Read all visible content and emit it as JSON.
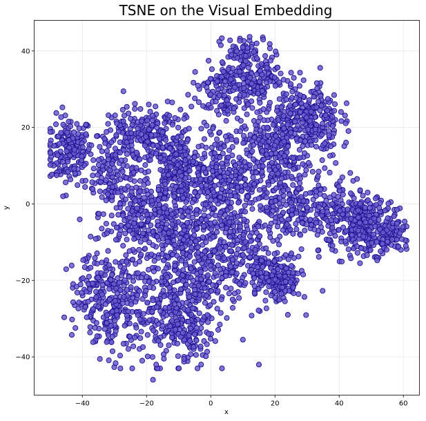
{
  "chart_data": {
    "type": "scatter",
    "title": "TSNE on the Visual Embedding",
    "xlabel": "x",
    "ylabel": "y",
    "xlim": [
      -55,
      65
    ],
    "ylim": [
      -50,
      48
    ],
    "xticks": [
      -40,
      -20,
      0,
      20,
      40,
      60
    ],
    "yticks": [
      -40,
      -20,
      0,
      20,
      40
    ],
    "grid": true,
    "marker_fill": "#6a5acd",
    "marker_edge": "#1a0f8f",
    "clusters": [
      {
        "center": [
          -44,
          14
        ],
        "spread": [
          3.5,
          4.5
        ],
        "n": 170
      },
      {
        "center": [
          -31,
          8
        ],
        "spread": [
          4,
          5
        ],
        "n": 130
      },
      {
        "center": [
          -25,
          18
        ],
        "spread": [
          5,
          3.5
        ],
        "n": 110
      },
      {
        "center": [
          -15,
          17
        ],
        "spread": [
          5,
          4
        ],
        "n": 130
      },
      {
        "center": [
          -10,
          8
        ],
        "spread": [
          5,
          5
        ],
        "n": 230
      },
      {
        "center": [
          -10,
          -8
        ],
        "spread": [
          6,
          6
        ],
        "n": 260
      },
      {
        "center": [
          -22,
          -5
        ],
        "spread": [
          5,
          6
        ],
        "n": 180
      },
      {
        "center": [
          -30,
          -26
        ],
        "spread": [
          5,
          7
        ],
        "n": 220
      },
      {
        "center": [
          -38,
          -22
        ],
        "spread": [
          3,
          5
        ],
        "n": 60
      },
      {
        "center": [
          -14,
          -28
        ],
        "spread": [
          5,
          7
        ],
        "n": 240
      },
      {
        "center": [
          -5,
          -35
        ],
        "spread": [
          3,
          4
        ],
        "n": 60
      },
      {
        "center": [
          5,
          6
        ],
        "spread": [
          5,
          7
        ],
        "n": 250
      },
      {
        "center": [
          6,
          -12
        ],
        "spread": [
          5,
          6
        ],
        "n": 170
      },
      {
        "center": [
          2,
          29
        ],
        "spread": [
          4,
          4
        ],
        "n": 90
      },
      {
        "center": [
          13,
          34
        ],
        "spread": [
          5,
          4
        ],
        "n": 200
      },
      {
        "center": [
          10,
          40
        ],
        "spread": [
          2,
          2
        ],
        "n": 20
      },
      {
        "center": [
          30,
          22
        ],
        "spread": [
          5,
          5
        ],
        "n": 290
      },
      {
        "center": [
          18,
          14
        ],
        "spread": [
          5,
          6
        ],
        "n": 190
      },
      {
        "center": [
          23,
          0
        ],
        "spread": [
          6,
          6
        ],
        "n": 210
      },
      {
        "center": [
          22,
          -20
        ],
        "spread": [
          3,
          3
        ],
        "n": 140
      },
      {
        "center": [
          14,
          -18
        ],
        "spread": [
          3,
          4
        ],
        "n": 60
      },
      {
        "center": [
          38,
          -3
        ],
        "spread": [
          5,
          5
        ],
        "n": 170
      },
      {
        "center": [
          49,
          -6
        ],
        "spread": [
          4,
          3.5
        ],
        "n": 220
      },
      {
        "center": [
          57,
          -7
        ],
        "spread": [
          2,
          3
        ],
        "n": 70
      },
      {
        "center": [
          -2,
          -22
        ],
        "spread": [
          4,
          5
        ],
        "n": 100
      }
    ],
    "outliers": [
      [
        -18,
        -46
      ],
      [
        15,
        -42
      ],
      [
        10,
        -35.5
      ],
      [
        -48,
        7.5
      ],
      [
        -46,
        2
      ],
      [
        24,
        -29
      ],
      [
        -3,
        -42
      ],
      [
        -17,
        -42
      ]
    ]
  }
}
